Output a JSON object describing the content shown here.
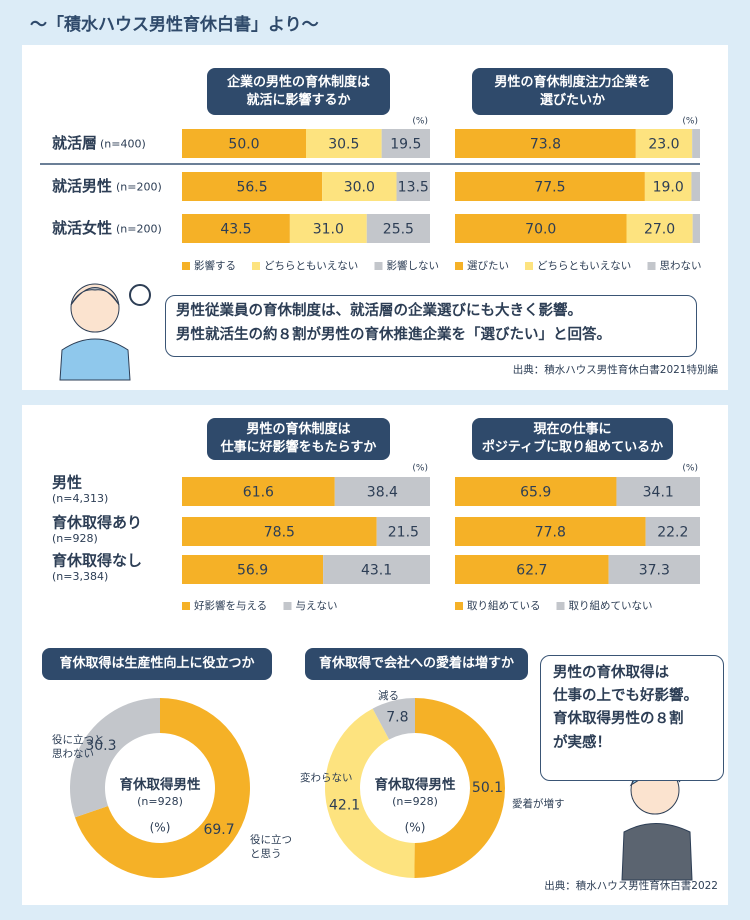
{
  "title": "〜「積水ハウス男性育休白書」より〜",
  "callouts": [
    "男性従業員の育休制度は、就活層の企業選びにも大きく影響。\n男性就活生の約８割が男性の育休推進企業を「選びたい」と回答。",
    "男性の育休取得は\n仕事の上でも好影響。\n育休取得男性の８割\nが実感！"
  ],
  "sources": [
    "出典：積水ハウス男性育休白書2021特別編",
    "出典：積水ハウス男性育休白書2022"
  ],
  "chart_data": [
    {
      "type": "bar",
      "orientation": "horizontal",
      "stacked": true,
      "title": "企業の男性の育休制度は\n就活に影響するか",
      "unit": "(%)",
      "categories": [
        "就活層",
        "就活男性",
        "就活女性"
      ],
      "sample_sizes": [
        "(n=400)",
        "(n=200)",
        "(n=200)"
      ],
      "xlim": [
        0,
        100
      ],
      "series": [
        {
          "name": "影響する",
          "color": "#f5b127",
          "values": [
            50,
            56.5,
            43.5
          ],
          "value_labels": [
            "50.0",
            "56.5",
            "43.5"
          ]
        },
        {
          "name": "どちらともいえない",
          "color": "#fde37f",
          "values": [
            30.5,
            30,
            31
          ],
          "value_labels": [
            "30.5",
            "30.0",
            "31.0"
          ]
        },
        {
          "name": "影響しない",
          "color": "#c3c6cb",
          "values": [
            19.5,
            13.5,
            25.5
          ]
        }
      ]
    },
    {
      "type": "bar",
      "orientation": "horizontal",
      "stacked": true,
      "title": "男性の育休制度注力企業を\n選びたいか",
      "unit": "(%)",
      "xlim": [
        0,
        100
      ],
      "series": [
        {
          "name": "選びたい",
          "color": "#f5b127",
          "values": [
            73.8,
            77.5,
            70
          ],
          "value_labels": [
            "73.8",
            "77.5",
            "70.0"
          ]
        },
        {
          "name": "どちらともいえない",
          "color": "#fde37f",
          "values": [
            23,
            19,
            27
          ],
          "value_labels": [
            "23.0",
            "19.0",
            "27.0"
          ]
        },
        {
          "name": "思わない",
          "color": "#c3c6cb",
          "values": [
            3.2,
            3.5,
            3
          ]
        }
      ]
    },
    {
      "type": "bar",
      "orientation": "horizontal",
      "stacked": true,
      "title": "男性の育休制度は\n仕事に好影響をもたらすか",
      "unit": "(%)",
      "categories": [
        "男性",
        "育休取得あり",
        "育休取得なし"
      ],
      "sample_sizes": [
        "(n=4,313)",
        "(n=928)",
        "(n=3,384)"
      ],
      "xlim": [
        0,
        100
      ],
      "series": [
        {
          "name": "好影響を与える",
          "color": "#f5b127",
          "values": [
            61.6,
            78.5,
            56.9
          ]
        },
        {
          "name": "与えない",
          "color": "#c3c6cb",
          "values": [
            38.4,
            21.5,
            43.1
          ]
        }
      ]
    },
    {
      "type": "bar",
      "orientation": "horizontal",
      "stacked": true,
      "title": "現在の仕事に\nポジティブに取り組めているか",
      "unit": "(%)",
      "xlim": [
        0,
        100
      ],
      "series": [
        {
          "name": "取り組めている",
          "color": "#f5b127",
          "values": [
            65.9,
            77.8,
            62.7
          ]
        },
        {
          "name": "取り組めていない",
          "color": "#c3c6cb",
          "values": [
            34.1,
            22.2,
            37.3
          ]
        }
      ]
    },
    {
      "type": "pie",
      "donut": true,
      "title": "育休取得は生産性向上に役立つか",
      "center_label": "育休取得男性",
      "sample_size": "(n=928)",
      "unit": "(%)",
      "categories": [
        "役に立つ\nと思う",
        "役に立つと\n思わない"
      ],
      "values": [
        69.7,
        30.3
      ],
      "colors": [
        "#f5b127",
        "#c3c6cb"
      ]
    },
    {
      "type": "pie",
      "donut": true,
      "title": "育休取得で会社への愛着は増すか",
      "center_label": "育休取得男性",
      "sample_size": "(n=928)",
      "unit": "(%)",
      "categories": [
        "愛着が増す",
        "変わらない",
        "減る"
      ],
      "values": [
        50.1,
        42.1,
        7.8
      ],
      "colors": [
        "#f5b127",
        "#fde37f",
        "#c3c6cb"
      ]
    }
  ]
}
